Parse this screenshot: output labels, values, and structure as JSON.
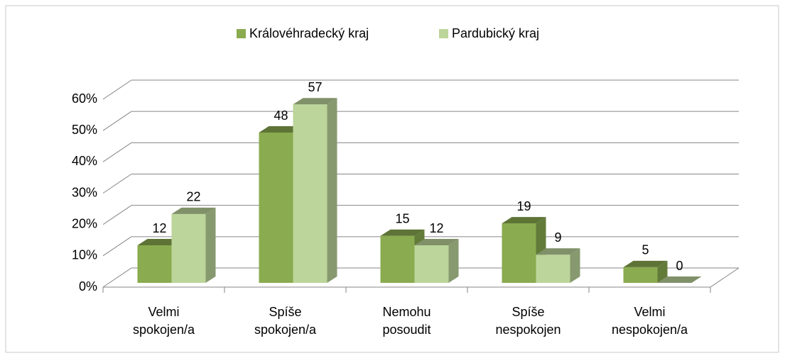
{
  "chart_data": {
    "type": "bar3d",
    "categories": [
      "Velmi spokojen/a",
      "Spíše spokojen/a",
      "Nemohu posoudit",
      "Spíše nespokojen",
      "Velmi nespokojen/a"
    ],
    "series": [
      {
        "name": "Královéhradecký kraj",
        "color": "#8aab4f",
        "values": [
          12,
          48,
          15,
          19,
          5
        ]
      },
      {
        "name": "Pardubický kraj",
        "color": "#bcd59a",
        "values": [
          22,
          57,
          12,
          9,
          0
        ]
      }
    ],
    "ylim": [
      0,
      60
    ],
    "yticks": [
      {
        "value": 0,
        "label": "0%"
      },
      {
        "value": 10,
        "label": "10%"
      },
      {
        "value": 20,
        "label": "20%"
      },
      {
        "value": 30,
        "label": "30%"
      },
      {
        "value": 40,
        "label": "40%"
      },
      {
        "value": 50,
        "label": "50%"
      },
      {
        "value": 60,
        "label": "60%"
      }
    ],
    "grid": true,
    "legend": "top"
  }
}
